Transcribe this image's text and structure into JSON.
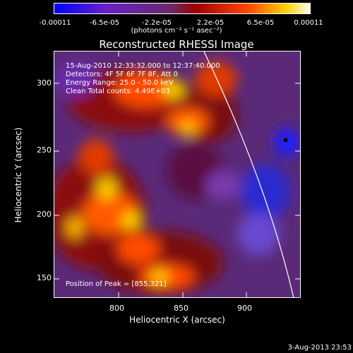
{
  "colorbar": {
    "ticks": [
      "-0.00011",
      "-6.5e-05",
      "-2.2e-05",
      "2.2e-05",
      "6.5e-05",
      "0.00011"
    ],
    "units": "(photons cm⁻² s⁻¹ asec⁻²)",
    "colors": [
      "#0000ff",
      "#6a1fc8",
      "#6b2a6b",
      "#a00000",
      "#ff4500",
      "#ffd000",
      "#ffffff"
    ]
  },
  "plot": {
    "title": "Reconstructed RHESSI Image",
    "xlabel": "Heliocentric X (arcsec)",
    "ylabel": "Heliocentric Y (arcsec)",
    "x_ticks": [
      "800",
      "850",
      "900"
    ],
    "y_ticks": [
      "150",
      "200",
      "250",
      "300"
    ],
    "info": {
      "line1": "15-Aug-2010 12:33:32.000 to 12:37:40.000",
      "line2": "Detectors: 4F 5F 6F 7F 8F, Att 0",
      "line3": "Energy Range: 25.0 - 50.0 keV",
      "line4": "Clean     Total counts: 4.49E+03",
      "peak": "Position of Peak = [855,321]"
    }
  },
  "footer": {
    "timestamp": "3-Aug-2013 23:53"
  }
}
